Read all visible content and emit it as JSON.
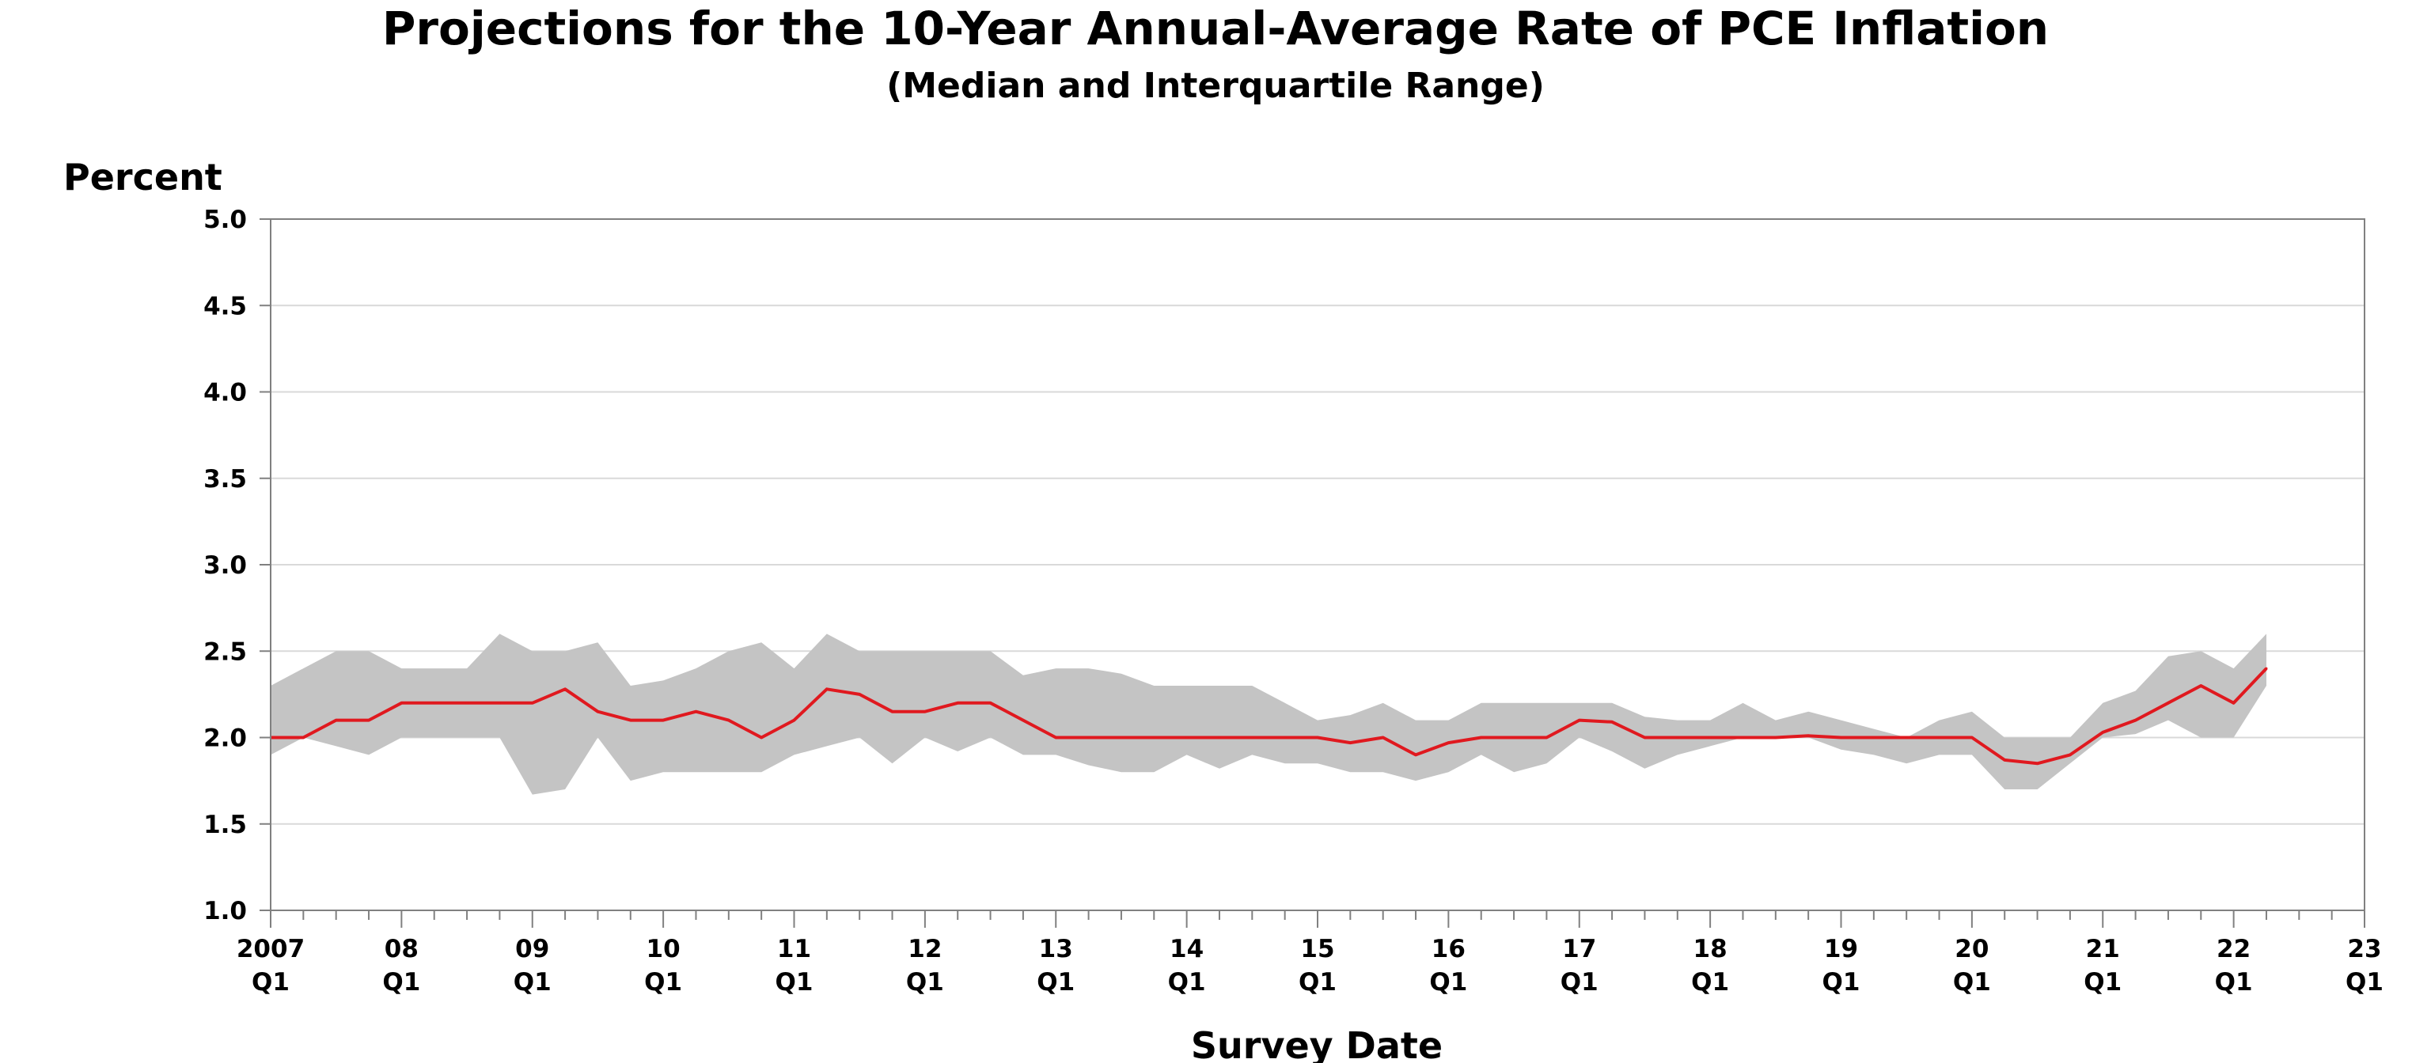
{
  "chart_data": {
    "type": "area",
    "title": "Projections for the 10-Year Annual-Average Rate of PCE Inflation",
    "subtitle": "(Median and Interquartile Range)",
    "xlabel": "Survey Date",
    "ylabel": "Percent",
    "ylim": [
      1.0,
      5.0
    ],
    "yticks": [
      "1.0",
      "1.5",
      "2.0",
      "2.5",
      "3.0",
      "3.5",
      "4.0",
      "4.5",
      "5.0"
    ],
    "x_start": "2007 Q1",
    "x_end": "2023 Q1",
    "xtick_labels": [
      [
        "2007",
        "Q1"
      ],
      [
        "08",
        "Q1"
      ],
      [
        "09",
        "Q1"
      ],
      [
        "10",
        "Q1"
      ],
      [
        "11",
        "Q1"
      ],
      [
        "12",
        "Q1"
      ],
      [
        "13",
        "Q1"
      ],
      [
        "14",
        "Q1"
      ],
      [
        "15",
        "Q1"
      ],
      [
        "16",
        "Q1"
      ],
      [
        "17",
        "Q1"
      ],
      [
        "18",
        "Q1"
      ],
      [
        "19",
        "Q1"
      ],
      [
        "20",
        "Q1"
      ],
      [
        "21",
        "Q1"
      ],
      [
        "22",
        "Q1"
      ],
      [
        "23",
        "Q1"
      ]
    ],
    "grid": true,
    "colors": {
      "median": "#e0191f",
      "band": "#c4c4c4",
      "grid": "#d9d9d9",
      "axis": "#808080"
    },
    "series": [
      {
        "values": [
          {
            "x": "2007 Q1",
            "y": 2.0
          },
          {
            "x": "2007 Q2",
            "y": 2.0
          },
          {
            "x": "2007 Q3",
            "y": 2.1
          },
          {
            "x": "2007 Q4",
            "y": 2.1
          },
          {
            "x": "2008 Q1",
            "y": 2.2
          },
          {
            "x": "2008 Q2",
            "y": 2.2
          },
          {
            "x": "2008 Q3",
            "y": 2.2
          },
          {
            "x": "2008 Q4",
            "y": 2.2
          },
          {
            "x": "2009 Q1",
            "y": 2.2
          },
          {
            "x": "2009 Q2",
            "y": 2.28
          },
          {
            "x": "2009 Q3",
            "y": 2.15
          },
          {
            "x": "2009 Q4",
            "y": 2.1
          },
          {
            "x": "2010 Q1",
            "y": 2.1
          },
          {
            "x": "2010 Q2",
            "y": 2.15
          },
          {
            "x": "2010 Q3",
            "y": 2.1
          },
          {
            "x": "2010 Q4",
            "y": 2.0
          },
          {
            "x": "2011 Q1",
            "y": 2.1
          },
          {
            "x": "2011 Q2",
            "y": 2.28
          },
          {
            "x": "2011 Q3",
            "y": 2.25
          },
          {
            "x": "2011 Q4",
            "y": 2.15
          },
          {
            "x": "2012 Q1",
            "y": 2.15
          },
          {
            "x": "2012 Q2",
            "y": 2.2
          },
          {
            "x": "2012 Q3",
            "y": 2.2
          },
          {
            "x": "2012 Q4",
            "y": 2.1
          },
          {
            "x": "2013 Q1",
            "y": 2.0
          },
          {
            "x": "2013 Q2",
            "y": 2.0
          },
          {
            "x": "2013 Q3",
            "y": 2.0
          },
          {
            "x": "2013 Q4",
            "y": 2.0
          },
          {
            "x": "2014 Q1",
            "y": 2.0
          },
          {
            "x": "2014 Q2",
            "y": 2.0
          },
          {
            "x": "2014 Q3",
            "y": 2.0
          },
          {
            "x": "2014 Q4",
            "y": 2.0
          },
          {
            "x": "2015 Q1",
            "y": 2.0
          },
          {
            "x": "2015 Q2",
            "y": 1.97
          },
          {
            "x": "2015 Q3",
            "y": 2.0
          },
          {
            "x": "2015 Q4",
            "y": 1.9
          },
          {
            "x": "2016 Q1",
            "y": 1.97
          },
          {
            "x": "2016 Q2",
            "y": 2.0
          },
          {
            "x": "2016 Q3",
            "y": 2.0
          },
          {
            "x": "2016 Q4",
            "y": 2.0
          },
          {
            "x": "2017 Q1",
            "y": 2.1
          },
          {
            "x": "2017 Q2",
            "y": 2.09
          },
          {
            "x": "2017 Q3",
            "y": 2.0
          },
          {
            "x": "2017 Q4",
            "y": 2.0
          },
          {
            "x": "2018 Q1",
            "y": 2.0
          },
          {
            "x": "2018 Q2",
            "y": 2.0
          },
          {
            "x": "2018 Q3",
            "y": 2.0
          },
          {
            "x": "2018 Q4",
            "y": 2.01
          },
          {
            "x": "2019 Q1",
            "y": 2.0
          },
          {
            "x": "2019 Q2",
            "y": 2.0
          },
          {
            "x": "2019 Q3",
            "y": 2.0
          },
          {
            "x": "2019 Q4",
            "y": 2.0
          },
          {
            "x": "2020 Q1",
            "y": 2.0
          },
          {
            "x": "2020 Q2",
            "y": 1.87
          },
          {
            "x": "2020 Q3",
            "y": 1.85
          },
          {
            "x": "2020 Q4",
            "y": 1.9
          },
          {
            "x": "2021 Q1",
            "y": 2.03
          },
          {
            "x": "2021 Q2",
            "y": 2.1
          },
          {
            "x": "2021 Q3",
            "y": 2.2
          },
          {
            "x": "2021 Q4",
            "y": 2.3
          },
          {
            "x": "2022 Q1",
            "y": 2.2
          },
          {
            "x": "2022 Q2",
            "y": 2.4
          }
        ]
      },
      {
        "values": [
          {
            "x": "2007 Q1",
            "y": 2.3
          },
          {
            "x": "2007 Q2",
            "y": 2.4
          },
          {
            "x": "2007 Q3",
            "y": 2.5
          },
          {
            "x": "2007 Q4",
            "y": 2.5
          },
          {
            "x": "2008 Q1",
            "y": 2.4
          },
          {
            "x": "2008 Q2",
            "y": 2.4
          },
          {
            "x": "2008 Q3",
            "y": 2.4
          },
          {
            "x": "2008 Q4",
            "y": 2.6
          },
          {
            "x": "2009 Q1",
            "y": 2.5
          },
          {
            "x": "2009 Q2",
            "y": 2.5
          },
          {
            "x": "2009 Q3",
            "y": 2.55
          },
          {
            "x": "2009 Q4",
            "y": 2.3
          },
          {
            "x": "2010 Q1",
            "y": 2.33
          },
          {
            "x": "2010 Q2",
            "y": 2.4
          },
          {
            "x": "2010 Q3",
            "y": 2.5
          },
          {
            "x": "2010 Q4",
            "y": 2.55
          },
          {
            "x": "2011 Q1",
            "y": 2.4
          },
          {
            "x": "2011 Q2",
            "y": 2.6
          },
          {
            "x": "2011 Q3",
            "y": 2.5
          },
          {
            "x": "2011 Q4",
            "y": 2.5
          },
          {
            "x": "2012 Q1",
            "y": 2.5
          },
          {
            "x": "2012 Q2",
            "y": 2.5
          },
          {
            "x": "2012 Q3",
            "y": 2.5
          },
          {
            "x": "2012 Q4",
            "y": 2.36
          },
          {
            "x": "2013 Q1",
            "y": 2.4
          },
          {
            "x": "2013 Q2",
            "y": 2.4
          },
          {
            "x": "2013 Q3",
            "y": 2.37
          },
          {
            "x": "2013 Q4",
            "y": 2.3
          },
          {
            "x": "2014 Q1",
            "y": 2.3
          },
          {
            "x": "2014 Q2",
            "y": 2.3
          },
          {
            "x": "2014 Q3",
            "y": 2.3
          },
          {
            "x": "2014 Q4",
            "y": 2.2
          },
          {
            "x": "2015 Q1",
            "y": 2.1
          },
          {
            "x": "2015 Q2",
            "y": 2.13
          },
          {
            "x": "2015 Q3",
            "y": 2.2
          },
          {
            "x": "2015 Q4",
            "y": 2.1
          },
          {
            "x": "2016 Q1",
            "y": 2.1
          },
          {
            "x": "2016 Q2",
            "y": 2.2
          },
          {
            "x": "2016 Q3",
            "y": 2.2
          },
          {
            "x": "2016 Q4",
            "y": 2.2
          },
          {
            "x": "2017 Q1",
            "y": 2.2
          },
          {
            "x": "2017 Q2",
            "y": 2.2
          },
          {
            "x": "2017 Q3",
            "y": 2.12
          },
          {
            "x": "2017 Q4",
            "y": 2.1
          },
          {
            "x": "2018 Q1",
            "y": 2.1
          },
          {
            "x": "2018 Q2",
            "y": 2.2
          },
          {
            "x": "2018 Q3",
            "y": 2.1
          },
          {
            "x": "2018 Q4",
            "y": 2.15
          },
          {
            "x": "2019 Q1",
            "y": 2.1
          },
          {
            "x": "2019 Q2",
            "y": 2.05
          },
          {
            "x": "2019 Q3",
            "y": 2.0
          },
          {
            "x": "2019 Q4",
            "y": 2.1
          },
          {
            "x": "2020 Q1",
            "y": 2.15
          },
          {
            "x": "2020 Q2",
            "y": 2.0
          },
          {
            "x": "2020 Q3",
            "y": 2.0
          },
          {
            "x": "2020 Q4",
            "y": 2.0
          },
          {
            "x": "2021 Q1",
            "y": 2.2
          },
          {
            "x": "2021 Q2",
            "y": 2.27
          },
          {
            "x": "2021 Q3",
            "y": 2.47
          },
          {
            "x": "2021 Q4",
            "y": 2.5
          },
          {
            "x": "2022 Q1",
            "y": 2.4
          },
          {
            "x": "2022 Q2",
            "y": 2.6
          }
        ]
      },
      {
        "values": [
          {
            "x": "2007 Q1",
            "y": 1.9
          },
          {
            "x": "2007 Q2",
            "y": 2.0
          },
          {
            "x": "2007 Q3",
            "y": 1.95
          },
          {
            "x": "2007 Q4",
            "y": 1.9
          },
          {
            "x": "2008 Q1",
            "y": 2.0
          },
          {
            "x": "2008 Q2",
            "y": 2.0
          },
          {
            "x": "2008 Q3",
            "y": 2.0
          },
          {
            "x": "2008 Q4",
            "y": 2.0
          },
          {
            "x": "2009 Q1",
            "y": 1.67
          },
          {
            "x": "2009 Q2",
            "y": 1.7
          },
          {
            "x": "2009 Q3",
            "y": 2.0
          },
          {
            "x": "2009 Q4",
            "y": 1.75
          },
          {
            "x": "2010 Q1",
            "y": 1.8
          },
          {
            "x": "2010 Q2",
            "y": 1.8
          },
          {
            "x": "2010 Q3",
            "y": 1.8
          },
          {
            "x": "2010 Q4",
            "y": 1.8
          },
          {
            "x": "2011 Q1",
            "y": 1.9
          },
          {
            "x": "2011 Q2",
            "y": 1.95
          },
          {
            "x": "2011 Q3",
            "y": 2.0
          },
          {
            "x": "2011 Q4",
            "y": 1.85
          },
          {
            "x": "2012 Q1",
            "y": 2.0
          },
          {
            "x": "2012 Q2",
            "y": 1.92
          },
          {
            "x": "2012 Q3",
            "y": 2.0
          },
          {
            "x": "2012 Q4",
            "y": 1.9
          },
          {
            "x": "2013 Q1",
            "y": 1.9
          },
          {
            "x": "2013 Q2",
            "y": 1.84
          },
          {
            "x": "2013 Q3",
            "y": 1.8
          },
          {
            "x": "2013 Q4",
            "y": 1.8
          },
          {
            "x": "2014 Q1",
            "y": 1.9
          },
          {
            "x": "2014 Q2",
            "y": 1.82
          },
          {
            "x": "2014 Q3",
            "y": 1.9
          },
          {
            "x": "2014 Q4",
            "y": 1.85
          },
          {
            "x": "2015 Q1",
            "y": 1.85
          },
          {
            "x": "2015 Q2",
            "y": 1.8
          },
          {
            "x": "2015 Q3",
            "y": 1.8
          },
          {
            "x": "2015 Q4",
            "y": 1.75
          },
          {
            "x": "2016 Q1",
            "y": 1.8
          },
          {
            "x": "2016 Q2",
            "y": 1.9
          },
          {
            "x": "2016 Q3",
            "y": 1.8
          },
          {
            "x": "2016 Q4",
            "y": 1.85
          },
          {
            "x": "2017 Q1",
            "y": 2.0
          },
          {
            "x": "2017 Q2",
            "y": 1.92
          },
          {
            "x": "2017 Q3",
            "y": 1.82
          },
          {
            "x": "2017 Q4",
            "y": 1.9
          },
          {
            "x": "2018 Q1",
            "y": 1.95
          },
          {
            "x": "2018 Q2",
            "y": 2.0
          },
          {
            "x": "2018 Q3",
            "y": 2.0
          },
          {
            "x": "2018 Q4",
            "y": 2.0
          },
          {
            "x": "2019 Q1",
            "y": 1.93
          },
          {
            "x": "2019 Q2",
            "y": 1.9
          },
          {
            "x": "2019 Q3",
            "y": 1.85
          },
          {
            "x": "2019 Q4",
            "y": 1.9
          },
          {
            "x": "2020 Q1",
            "y": 1.9
          },
          {
            "x": "2020 Q2",
            "y": 1.7
          },
          {
            "x": "2020 Q3",
            "y": 1.7
          },
          {
            "x": "2020 Q4",
            "y": 1.85
          },
          {
            "x": "2021 Q1",
            "y": 2.0
          },
          {
            "x": "2021 Q2",
            "y": 2.02
          },
          {
            "x": "2021 Q3",
            "y": 2.1
          },
          {
            "x": "2021 Q4",
            "y": 2.0
          },
          {
            "x": "2022 Q1",
            "y": 2.0
          },
          {
            "x": "2022 Q2",
            "y": 2.3
          }
        ]
      }
    ]
  }
}
